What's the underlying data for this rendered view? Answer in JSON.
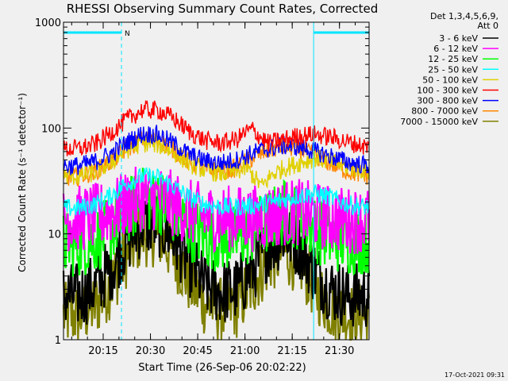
{
  "chart_data": {
    "type": "line",
    "title": "RHESSI Observing Summary Count Rates, Corrected",
    "xlabel": "Start Time (26-Sep-06 20:02:22)",
    "ylabel": "Corrected Count Rate (s⁻¹ detector⁻¹)",
    "y_scale": "log",
    "ylim": [
      1,
      1000
    ],
    "xlim_minutes": [
      0,
      97
    ],
    "x_ticks": [
      {
        "label": "20:15",
        "minutes": 12.6
      },
      {
        "label": "20:30",
        "minutes": 27.6
      },
      {
        "label": "20:45",
        "minutes": 42.6
      },
      {
        "label": "21:00",
        "minutes": 57.6
      },
      {
        "label": "21:15",
        "minutes": 72.6
      },
      {
        "label": "21:30",
        "minutes": 87.6
      }
    ],
    "y_ticks": [
      {
        "label": "1",
        "value": 1
      },
      {
        "label": "10",
        "value": 10
      },
      {
        "label": "100",
        "value": 100
      },
      {
        "label": "1000",
        "value": 1000
      }
    ],
    "legend_header": [
      "Det 1,3,4,5,6,9,",
      "Att 0"
    ],
    "legend_position": "right",
    "grid": false,
    "night_bar": {
      "label": "N",
      "start_min": 0,
      "end_min": 18.4
    },
    "night_bar_2": {
      "start_min": 79.4,
      "end_min": 97
    },
    "vlines_minutes": [
      0,
      18.4,
      79.4,
      97
    ],
    "series": [
      {
        "name": "3 - 6 keV",
        "color": "#000000",
        "x": [
          0,
          5,
          10,
          15,
          20,
          25,
          30,
          35,
          40,
          45,
          50,
          55,
          60,
          65,
          70,
          75,
          80,
          85,
          90,
          95,
          97
        ],
        "y": [
          2.6,
          2.6,
          3.2,
          4.7,
          8.5,
          12.5,
          12.5,
          9,
          5.2,
          3.2,
          2.8,
          3,
          4.6,
          7.7,
          10,
          7.7,
          4.3,
          3,
          2.6,
          2.6,
          2.6
        ]
      },
      {
        "name": "6 - 12 keV",
        "color": "#ff00ff",
        "x": [
          0,
          5,
          10,
          15,
          20,
          25,
          30,
          35,
          40,
          45,
          50,
          55,
          60,
          65,
          70,
          75,
          80,
          85,
          90,
          95,
          97
        ],
        "y": [
          14,
          14,
          14.5,
          16,
          19,
          22,
          22,
          19,
          16,
          14.5,
          14,
          14,
          14,
          14.5,
          16,
          16,
          15,
          14,
          13.5,
          13.5,
          13.5
        ]
      },
      {
        "name": "12 - 25 keV",
        "color": "#00ff00",
        "x": [
          0,
          5,
          10,
          15,
          20,
          25,
          30,
          35,
          40,
          45,
          50,
          55,
          60,
          65,
          70,
          75,
          80,
          85,
          90,
          95,
          97
        ],
        "y": [
          8,
          8,
          8.8,
          11,
          16,
          21,
          21,
          16,
          11.5,
          9.5,
          9,
          9,
          10.5,
          13,
          16,
          14.5,
          11,
          9,
          8.5,
          8.5,
          8.5
        ]
      },
      {
        "name": "25 - 50 keV",
        "color": "#00ffff",
        "x": [
          0,
          5,
          10,
          15,
          20,
          25,
          30,
          35,
          40,
          45,
          50,
          55,
          60,
          65,
          70,
          75,
          80,
          85,
          90,
          95,
          97
        ],
        "y": [
          17.5,
          17.5,
          19,
          23,
          30,
          35,
          34,
          28,
          22,
          19,
          18,
          18,
          18.5,
          19.5,
          21,
          23,
          24,
          22,
          19,
          18,
          18
        ]
      },
      {
        "name": "50 - 100 keV",
        "color": "#e0d000",
        "x": [
          0,
          5,
          10,
          15,
          20,
          25,
          30,
          35,
          40,
          45,
          50,
          55,
          58,
          61,
          63,
          66,
          70,
          75,
          80,
          85,
          90,
          95,
          97
        ],
        "y": [
          35,
          35,
          38,
          47,
          62,
          72,
          70,
          59,
          46,
          40,
          37,
          39,
          42,
          33,
          28,
          36,
          42,
          47,
          52,
          48,
          43,
          40,
          39
        ]
      },
      {
        "name": "100 - 300 keV",
        "color": "#ff0000",
        "x": [
          0,
          5,
          10,
          15,
          20,
          25,
          30,
          35,
          40,
          45,
          50,
          55,
          58,
          60,
          62,
          65,
          70,
          75,
          80,
          85,
          90,
          95,
          97
        ],
        "y": [
          63,
          64,
          70,
          90,
          120,
          148,
          148,
          123,
          92,
          76,
          72,
          78,
          92,
          97,
          85,
          72,
          78,
          85,
          87,
          82,
          74,
          68,
          66
        ]
      },
      {
        "name": "300 - 800 keV",
        "color": "#0000ff",
        "x": [
          0,
          5,
          10,
          15,
          20,
          25,
          30,
          35,
          40,
          45,
          50,
          55,
          60,
          65,
          70,
          75,
          80,
          85,
          90,
          95,
          97
        ],
        "y": [
          44,
          44,
          48,
          57,
          73,
          88,
          87,
          71,
          56,
          49,
          47,
          50,
          58,
          64,
          68,
          66,
          60,
          54,
          48,
          45,
          44
        ]
      },
      {
        "name": "800 - 7000 keV",
        "color": "#ff8800",
        "x": [
          0,
          5,
          10,
          15,
          20,
          25,
          30,
          35,
          40,
          45,
          50,
          55,
          60,
          65,
          70,
          75,
          80,
          85,
          90,
          95,
          97
        ],
        "y": [
          34,
          35,
          39,
          48,
          63,
          78,
          77,
          62,
          47,
          41,
          39,
          42,
          52,
          62,
          67,
          63,
          55,
          46,
          39,
          36,
          35
        ]
      },
      {
        "name": "7000 - 15000 keV",
        "color": "#808000",
        "x": [
          0,
          5,
          10,
          15,
          20,
          25,
          30,
          35,
          40,
          45,
          50,
          55,
          60,
          65,
          70,
          75,
          80,
          85,
          90,
          95,
          97
        ],
        "y": [
          1.7,
          1.7,
          2.1,
          3.3,
          6.3,
          10,
          10,
          6.5,
          3.5,
          2.2,
          1.9,
          2.1,
          3.3,
          5.5,
          6.8,
          5.5,
          3,
          2,
          1.7,
          1.7,
          1.7
        ]
      }
    ]
  },
  "footer_timestamp": "17-Oct-2021 09:31"
}
